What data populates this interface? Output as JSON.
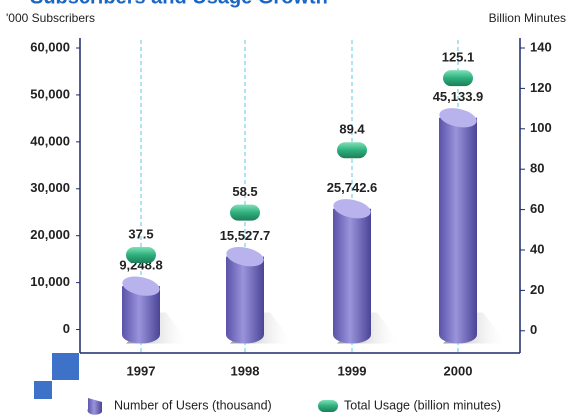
{
  "chart_data": {
    "type": "bar",
    "title": "Subscribers and Usage Growth",
    "y_axis_label": "'000 Subscribers",
    "y2_axis_label": "Billion Minutes",
    "categories": [
      "1997",
      "1998",
      "1999",
      "2000"
    ],
    "series": [
      {
        "name": "Number of Users (thousand)",
        "color": "#7b74c4",
        "values": [
          9248.8,
          15527.7,
          25742.6,
          45133.9
        ],
        "value_labels": [
          "9,248.8",
          "15,527.7",
          "25,742.6",
          "45,133.9"
        ]
      },
      {
        "name": "Total Usage (billion minutes)",
        "color": "#2eaf7d",
        "axis": "y2",
        "values": [
          37.5,
          58.5,
          89.4,
          125.1
        ]
      }
    ],
    "ylim": [
      -5000,
      60000
    ],
    "yticks": [
      {
        "value": 0,
        "label": "0"
      },
      {
        "value": 10000,
        "label": "10,000"
      },
      {
        "value": 20000,
        "label": "20,000"
      },
      {
        "value": 30000,
        "label": "30,000"
      },
      {
        "value": 40000,
        "label": "40,000"
      },
      {
        "value": 50000,
        "label": "50,000"
      },
      {
        "value": 60000,
        "label": "60,000"
      }
    ],
    "y2lim": [
      -11,
      140
    ],
    "y2ticks": [
      0,
      20,
      40,
      60,
      80,
      100,
      120,
      140
    ]
  }
}
